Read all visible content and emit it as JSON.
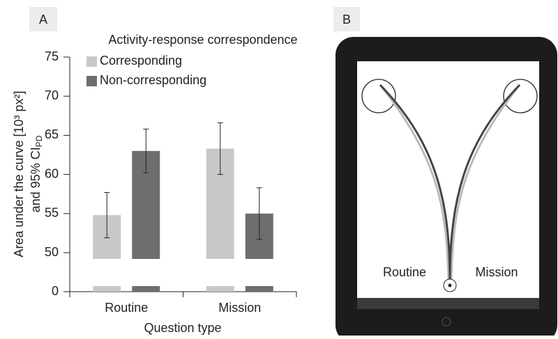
{
  "panel_labels": {
    "a": "A",
    "b": "B"
  },
  "chart_data": {
    "type": "bar",
    "legend_title": "Activity-response correspondence",
    "ylabel_line1": "Area under the curve [10³ px²]",
    "ylabel_line2": "and 95% CI",
    "ylabel_line2_sub": "PD",
    "xlabel": "Question type",
    "categories": [
      "Routine",
      "Mission"
    ],
    "series": [
      {
        "name": "Corresponding",
        "color": "#c8c8c8",
        "values": [
          54.8,
          63.3
        ],
        "errors": [
          2.9,
          3.3
        ]
      },
      {
        "name": "Non-corresponding",
        "color": "#6e6e6e",
        "values": [
          63.0,
          55.0
        ],
        "errors": [
          2.8,
          3.3
        ]
      }
    ],
    "ylim": [
      0,
      75
    ],
    "axis_break": [
      0,
      50
    ],
    "yticks": [
      0,
      50,
      55,
      60,
      65,
      70,
      75
    ]
  },
  "tablet": {
    "left_label": "Routine",
    "right_label": "Mission"
  }
}
